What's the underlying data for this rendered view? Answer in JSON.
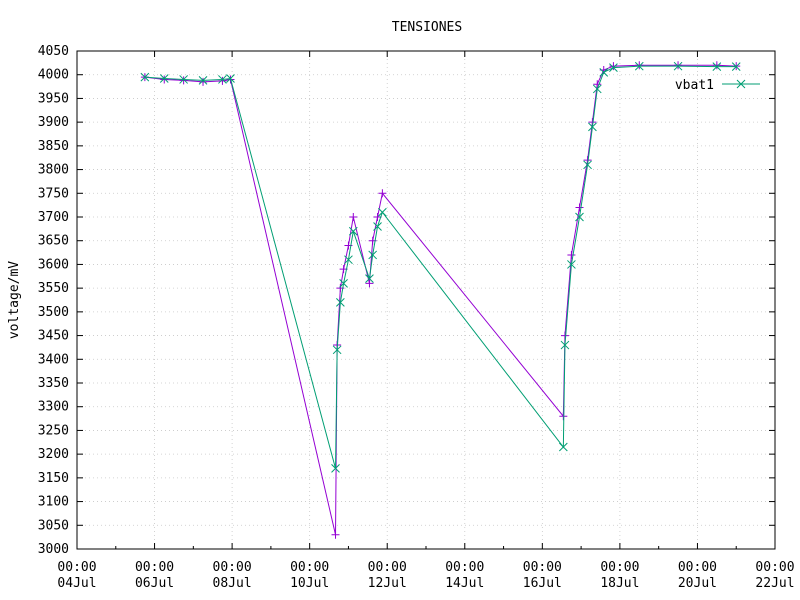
{
  "chart_data": {
    "type": "line",
    "title": "TENSIONES",
    "ylabel": "voltage/mV",
    "xlabel": "",
    "ylim": [
      3000,
      4050
    ],
    "xlim": [
      "2022-07-04",
      "2022-07-22"
    ],
    "yticks": [
      3000,
      3050,
      3100,
      3150,
      3200,
      3250,
      3300,
      3350,
      3400,
      3450,
      3500,
      3550,
      3600,
      3650,
      3700,
      3750,
      3800,
      3850,
      3900,
      3950,
      4000,
      4050
    ],
    "xticks": [
      {
        "date": "2022-07-04",
        "time": "00:00",
        "day": "04Jul"
      },
      {
        "date": "2022-07-06",
        "time": "00:00",
        "day": "06Jul"
      },
      {
        "date": "2022-07-08",
        "time": "00:00",
        "day": "08Jul"
      },
      {
        "date": "2022-07-10",
        "time": "00:00",
        "day": "10Jul"
      },
      {
        "date": "2022-07-12",
        "time": "00:00",
        "day": "12Jul"
      },
      {
        "date": "2022-07-14",
        "time": "00:00",
        "day": "14Jul"
      },
      {
        "date": "2022-07-16",
        "time": "00:00",
        "day": "16Jul"
      },
      {
        "date": "2022-07-18",
        "time": "00:00",
        "day": "18Jul"
      },
      {
        "date": "2022-07-20",
        "time": "00:00",
        "day": "20Jul"
      },
      {
        "date": "2022-07-22",
        "time": "00:00",
        "day": "22Jul"
      }
    ],
    "grid": true,
    "legend_position": "top-right",
    "series": [
      {
        "name": "",
        "color": "#9400d3",
        "marker": "plus",
        "points": [
          [
            "2022-07-05 18:00",
            3995
          ],
          [
            "2022-07-06 06:00",
            3990
          ],
          [
            "2022-07-06 18:00",
            3988
          ],
          [
            "2022-07-07 06:00",
            3985
          ],
          [
            "2022-07-07 18:00",
            3987
          ],
          [
            "2022-07-07 23:00",
            3990
          ],
          [
            "2022-07-10 16:00",
            3030
          ],
          [
            "2022-07-10 17:00",
            3430
          ],
          [
            "2022-07-10 19:00",
            3550
          ],
          [
            "2022-07-10 21:00",
            3590
          ],
          [
            "2022-07-11 00:00",
            3640
          ],
          [
            "2022-07-11 03:00",
            3700
          ],
          [
            "2022-07-11 13:00",
            3560
          ],
          [
            "2022-07-11 15:00",
            3650
          ],
          [
            "2022-07-11 18:00",
            3700
          ],
          [
            "2022-07-11 21:00",
            3750
          ],
          [
            "2022-07-16 13:00",
            3280
          ],
          [
            "2022-07-16 14:00",
            3450
          ],
          [
            "2022-07-16 18:00",
            3620
          ],
          [
            "2022-07-16 23:00",
            3720
          ],
          [
            "2022-07-17 04:00",
            3820
          ],
          [
            "2022-07-17 07:00",
            3900
          ],
          [
            "2022-07-17 10:00",
            3980
          ],
          [
            "2022-07-17 14:00",
            4010
          ],
          [
            "2022-07-17 20:00",
            4018
          ],
          [
            "2022-07-18 12:00",
            4020
          ],
          [
            "2022-07-19 12:00",
            4020
          ],
          [
            "2022-07-20 12:00",
            4020
          ],
          [
            "2022-07-21 00:00",
            4018
          ]
        ]
      },
      {
        "name": "vbat1",
        "color": "#009e73",
        "marker": "cross",
        "points": [
          [
            "2022-07-05 18:00",
            3995
          ],
          [
            "2022-07-06 06:00",
            3992
          ],
          [
            "2022-07-06 18:00",
            3990
          ],
          [
            "2022-07-07 06:00",
            3988
          ],
          [
            "2022-07-07 18:00",
            3990
          ],
          [
            "2022-07-07 23:00",
            3992
          ],
          [
            "2022-07-10 16:00",
            3170
          ],
          [
            "2022-07-10 17:00",
            3420
          ],
          [
            "2022-07-10 19:00",
            3520
          ],
          [
            "2022-07-10 21:00",
            3560
          ],
          [
            "2022-07-11 00:00",
            3610
          ],
          [
            "2022-07-11 03:00",
            3670
          ],
          [
            "2022-07-11 13:00",
            3570
          ],
          [
            "2022-07-11 15:00",
            3620
          ],
          [
            "2022-07-11 18:00",
            3680
          ],
          [
            "2022-07-11 21:00",
            3710
          ],
          [
            "2022-07-16 13:00",
            3215
          ],
          [
            "2022-07-16 14:00",
            3430
          ],
          [
            "2022-07-16 18:00",
            3600
          ],
          [
            "2022-07-16 23:00",
            3700
          ],
          [
            "2022-07-17 04:00",
            3810
          ],
          [
            "2022-07-17 07:00",
            3890
          ],
          [
            "2022-07-17 10:00",
            3970
          ],
          [
            "2022-07-17 14:00",
            4005
          ],
          [
            "2022-07-17 20:00",
            4015
          ],
          [
            "2022-07-18 12:00",
            4018
          ],
          [
            "2022-07-19 12:00",
            4018
          ],
          [
            "2022-07-20 12:00",
            4017
          ],
          [
            "2022-07-21 00:00",
            4017
          ]
        ]
      }
    ]
  }
}
